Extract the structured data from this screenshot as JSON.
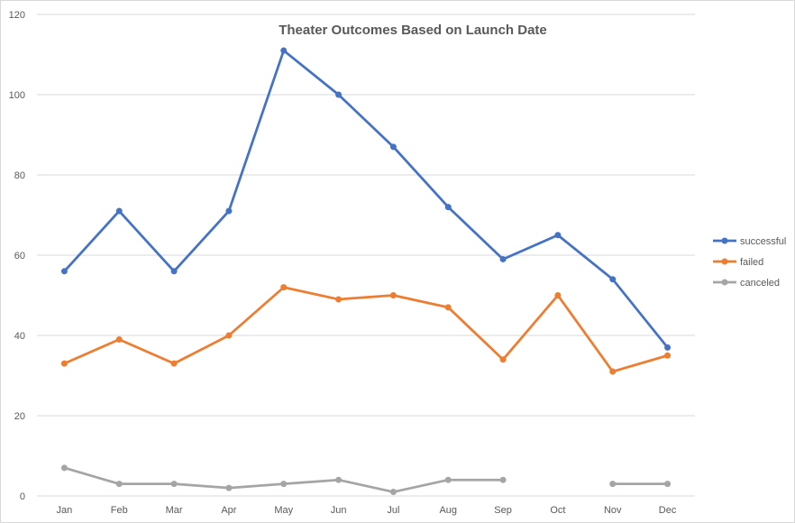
{
  "chart_data": {
    "type": "line",
    "title": "Theater Outcomes Based on Launch Date",
    "xlabel": "",
    "ylabel": "",
    "categories": [
      "Jan",
      "Feb",
      "Mar",
      "Apr",
      "May",
      "Jun",
      "Jul",
      "Aug",
      "Sep",
      "Oct",
      "Nov",
      "Dec"
    ],
    "ylim": [
      0,
      120
    ],
    "yticks": [
      0,
      20,
      40,
      60,
      80,
      100,
      120
    ],
    "grid": true,
    "legend_position": "right",
    "series": [
      {
        "name": "successful",
        "color": "#4472c4",
        "values": [
          56,
          71,
          56,
          71,
          111,
          100,
          87,
          72,
          59,
          65,
          54,
          37
        ]
      },
      {
        "name": "failed",
        "color": "#ed7d31",
        "values": [
          33,
          39,
          33,
          40,
          52,
          49,
          50,
          47,
          34,
          50,
          31,
          35
        ]
      },
      {
        "name": "canceled",
        "color": "#a5a5a5",
        "values": [
          7,
          3,
          3,
          2,
          3,
          4,
          1,
          4,
          4,
          null,
          3,
          3
        ]
      }
    ]
  }
}
